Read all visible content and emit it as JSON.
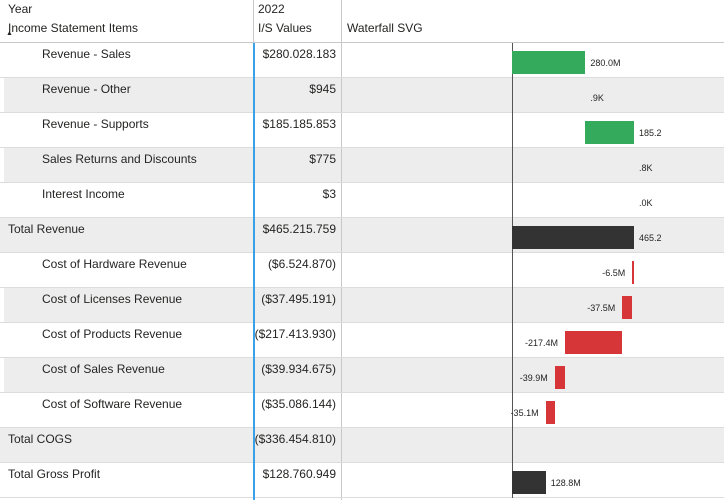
{
  "header": {
    "row1_col1": "Year",
    "row1_col2": "2022",
    "col_items": "Income Statement Items",
    "col_values": "I/S Values",
    "col_waterfall": "Waterfall SVG"
  },
  "colors": {
    "positive": "#33aa5c",
    "negative": "#d63638",
    "total": "#333333",
    "highlight_line": "#3aa0e8"
  },
  "rows": [
    {
      "label": "Revenue - Sales",
      "value": "$280.028.183",
      "indent": true,
      "shaded": false,
      "wf_label": "280.0M",
      "kind": "positive",
      "start": 0,
      "end": 280.028
    },
    {
      "label": "Revenue - Other",
      "value": "$945",
      "indent": true,
      "shaded": true,
      "wf_label": ".9K",
      "kind": "positive",
      "start": 280.028,
      "end": 280.029
    },
    {
      "label": "Revenue - Supports",
      "value": "$185.185.853",
      "indent": true,
      "shaded": false,
      "wf_label": "185.2",
      "kind": "positive",
      "start": 280.029,
      "end": 465.215
    },
    {
      "label": "Sales Returns and Discounts",
      "value": "$775",
      "indent": true,
      "shaded": true,
      "wf_label": ".8K",
      "kind": "positive",
      "start": 465.215,
      "end": 465.216
    },
    {
      "label": "Interest Income",
      "value": "$3",
      "indent": true,
      "shaded": false,
      "wf_label": ".0K",
      "kind": "positive",
      "start": 465.216,
      "end": 465.216
    },
    {
      "label": "Total Revenue",
      "value": "$465.215.759",
      "indent": false,
      "shaded": true,
      "wf_label": "465.2",
      "kind": "total",
      "start": 0,
      "end": 465.216
    },
    {
      "label": "Cost of Hardware Revenue",
      "value": "($6.524.870)",
      "indent": true,
      "shaded": false,
      "wf_label": "-6.5M",
      "kind": "negative",
      "start": 465.216,
      "end": 458.691
    },
    {
      "label": "Cost of Licenses Revenue",
      "value": "($37.495.191)",
      "indent": true,
      "shaded": true,
      "wf_label": "-37.5M",
      "kind": "negative",
      "start": 458.691,
      "end": 421.196
    },
    {
      "label": "Cost of Products Revenue",
      "value": "($217.413.930)",
      "indent": true,
      "shaded": false,
      "wf_label": "-217.4M",
      "kind": "negative",
      "start": 421.196,
      "end": 203.782
    },
    {
      "label": "Cost of Sales Revenue",
      "value": "($39.934.675)",
      "indent": true,
      "shaded": true,
      "wf_label": "-39.9M",
      "kind": "negative",
      "start": 203.782,
      "end": 163.847
    },
    {
      "label": "Cost of Software Revenue",
      "value": "($35.086.144)",
      "indent": true,
      "shaded": false,
      "wf_label": "-35.1M",
      "kind": "negative",
      "start": 163.847,
      "end": 128.761
    },
    {
      "label": "Total COGS",
      "value": "($336.454.810)",
      "indent": false,
      "shaded": true,
      "wf_label": "",
      "kind": "none",
      "start": 0,
      "end": 0
    },
    {
      "label": "Total Gross Profit",
      "value": "$128.760.949",
      "indent": false,
      "shaded": false,
      "wf_label": "128.8M",
      "kind": "total",
      "start": 0,
      "end": 128.761
    }
  ]
}
